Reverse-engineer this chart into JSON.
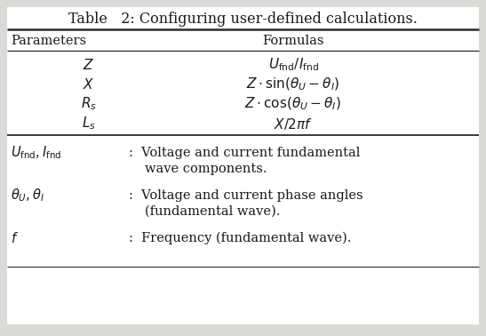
{
  "title": "Table   2: Configuring user-defined calculations.",
  "col_headers": [
    "Parameters",
    "Formulas"
  ],
  "params": [
    "$Z$",
    "$X$",
    "$R_s$",
    "$L_s$"
  ],
  "formulas": [
    "$U_{\\mathrm{fnd}}/I_{\\mathrm{fnd}}$",
    "$Z \\cdot \\sin(\\theta_U - \\theta_I)$",
    "$Z \\cdot \\cos(\\theta_U - \\theta_I)$",
    "$X/2\\pi f$"
  ],
  "note_symbols": [
    "$U_{\\mathrm{fnd}}, I_{\\mathrm{fnd}}$",
    "$\\theta_U, \\theta_I$",
    "$f$"
  ],
  "note_colon": [
    ":  Voltage and current fundamental",
    ":  Voltage and current phase angles",
    ":  Frequency (fundamental wave)."
  ],
  "note_line2": [
    "wave components.",
    "(fundamental wave).",
    null
  ],
  "bg_color": "#ffffff",
  "outer_bg": "#dcdad6",
  "text_color": "#1a1a1a",
  "line_color": "#2a2a2a",
  "font_size": 10.5,
  "title_font_size": 11.5
}
